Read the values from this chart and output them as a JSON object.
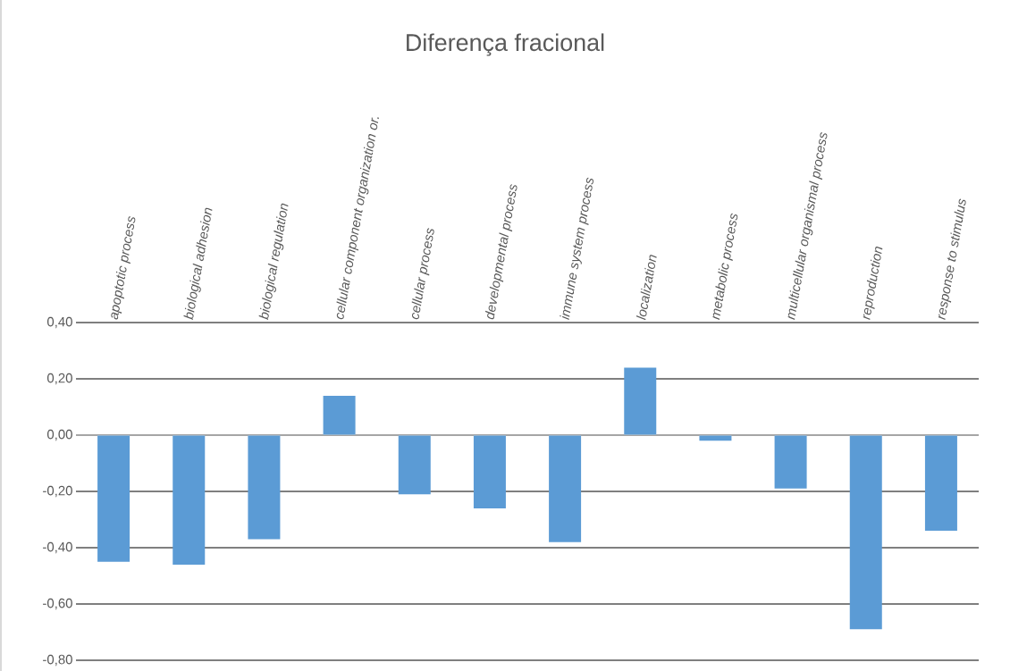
{
  "chart_data": {
    "type": "bar",
    "title": "Diferença fracional",
    "categories": [
      "apoptotic process",
      "biological adhesion",
      "biological regulation",
      "cellular component organization or.",
      "cellular process",
      "developmental process",
      "immune system process",
      "localization",
      "metabolic process",
      "multicellular organismal process",
      "reproduction",
      "response to stimulus"
    ],
    "values": [
      -0.45,
      -0.46,
      -0.37,
      0.14,
      -0.21,
      -0.26,
      -0.38,
      0.24,
      -0.02,
      -0.19,
      -0.69,
      -0.34
    ],
    "color": "#5b9bd5",
    "ylim": [
      -0.8,
      0.4
    ],
    "yticks": [
      {
        "value": -0.8,
        "label": "-0,80"
      },
      {
        "value": -0.6,
        "label": "-0,60"
      },
      {
        "value": -0.4,
        "label": "-0,40"
      },
      {
        "value": -0.2,
        "label": "-0,20"
      },
      {
        "value": 0,
        "label": "0,00"
      },
      {
        "value": 0.2,
        "label": "0,20"
      },
      {
        "value": 0.4,
        "label": "0,40"
      }
    ],
    "grid": "y"
  }
}
